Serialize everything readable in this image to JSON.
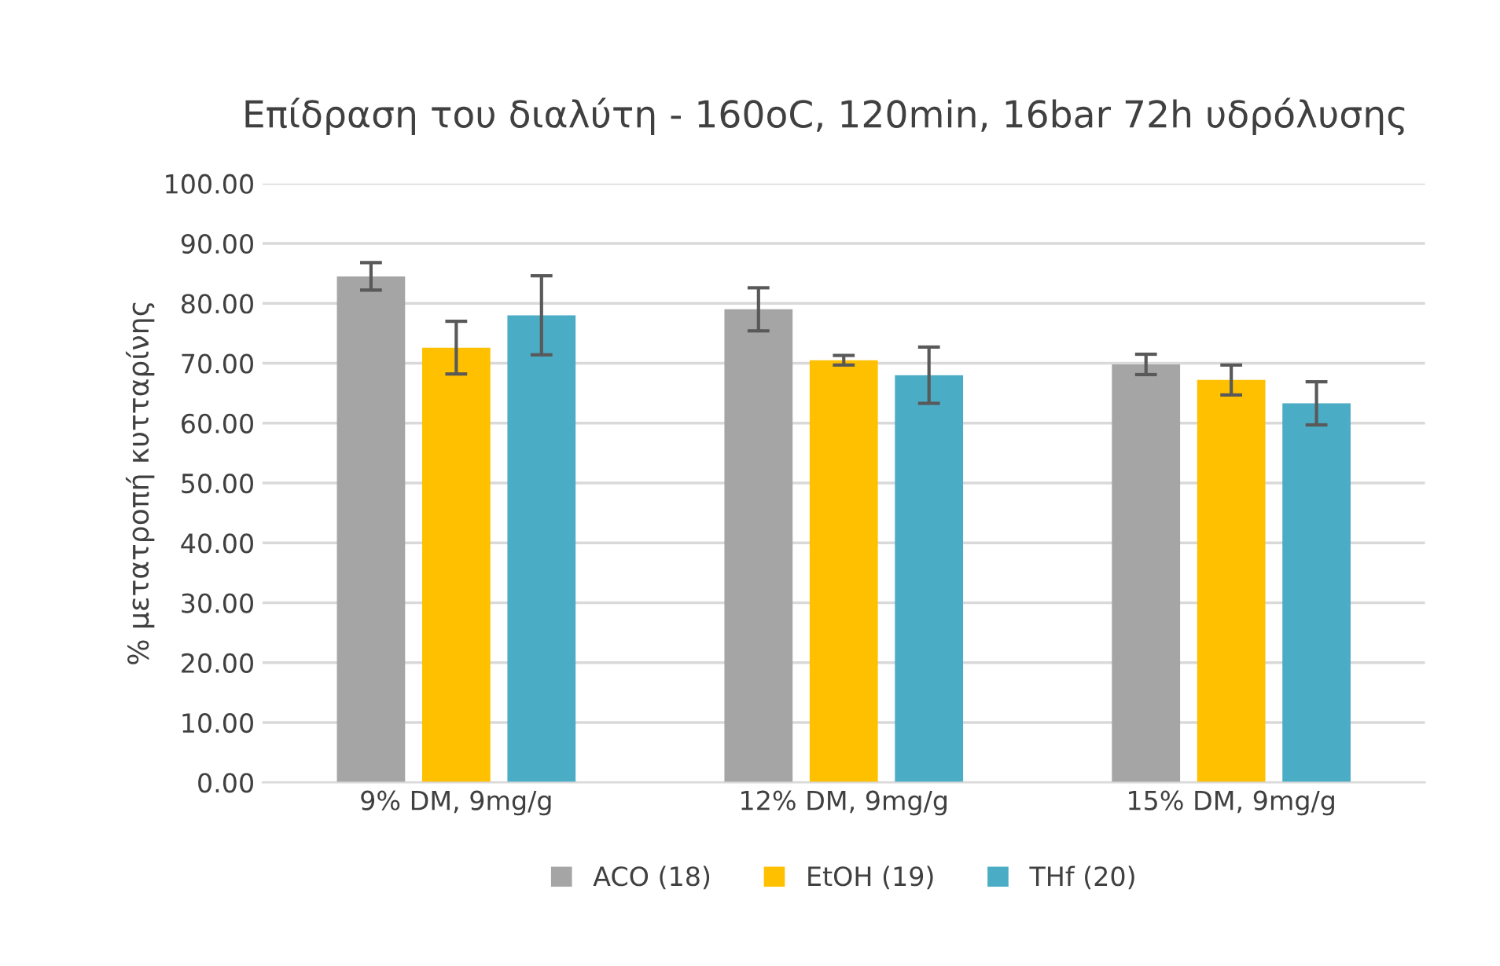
{
  "chart_data": {
    "type": "bar",
    "title": "Επίδραση του διαλύτη - 160oC, 120min, 16bar 72h υδρόλυσης",
    "ylabel": "% μετατροπή κυτταρίνης",
    "categories": [
      "9% DM, 9mg/g",
      "12% DM, 9mg/g",
      "15% DM, 9mg/g"
    ],
    "series": [
      {
        "name": "ACO (18)",
        "color": "#a5a5a5",
        "values": [
          84.5,
          79.0,
          69.8
        ],
        "errors": [
          2.3,
          3.6,
          1.7
        ]
      },
      {
        "name": "EtOH (19)",
        "color": "#ffc000",
        "values": [
          72.6,
          70.5,
          67.2
        ],
        "errors": [
          4.4,
          0.8,
          2.5
        ]
      },
      {
        "name": "THf (20)",
        "color": "#4bacc6",
        "values": [
          78.0,
          68.0,
          63.3
        ],
        "errors": [
          6.6,
          4.7,
          3.6
        ]
      }
    ],
    "ylim": [
      0,
      100
    ],
    "yticks": [
      {
        "value": 0,
        "label": "0.00"
      },
      {
        "value": 10,
        "label": "10.00"
      },
      {
        "value": 20,
        "label": "20.00"
      },
      {
        "value": 30,
        "label": "30.00"
      },
      {
        "value": 40,
        "label": "40.00"
      },
      {
        "value": 50,
        "label": "50.00"
      },
      {
        "value": 60,
        "label": "60.00"
      },
      {
        "value": 70,
        "label": "70.00"
      },
      {
        "value": 80,
        "label": "80.00"
      },
      {
        "value": 90,
        "label": "90.00"
      },
      {
        "value": 100,
        "label": "100.00"
      }
    ],
    "grid": "y",
    "legend": "bottom"
  }
}
